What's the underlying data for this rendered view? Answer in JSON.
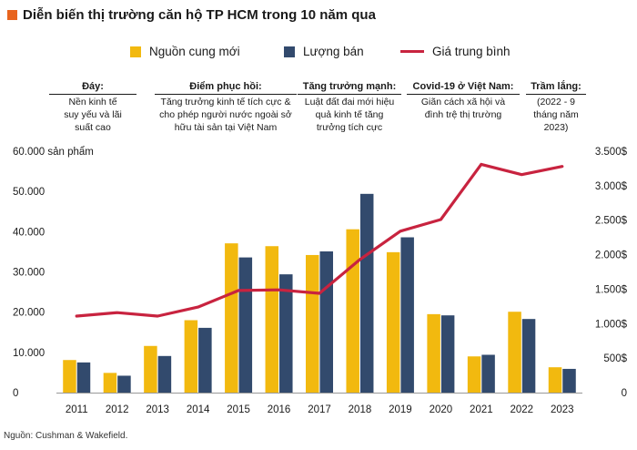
{
  "title": "Diễn biến thị trường căn hộ TP HCM trong 10 năm qua",
  "source": "Nguồn: Cushman & Wakefield.",
  "colors": {
    "accent": "#e8641e",
    "supply": "#f2b90f",
    "sold": "#324a6d",
    "price": "#c8233f",
    "axis": "#555555"
  },
  "annotations": [
    {
      "heading": "Đáy:",
      "text": "Nền kinh tế suy yếu và lãi suất cao"
    },
    {
      "heading": "Điểm phục hồi:",
      "text": "Tăng trưởng kinh tế tích cực & cho phép người nước ngoài sở hữu tài sản tại Việt Nam"
    },
    {
      "heading": "Tăng trưởng mạnh:",
      "text": "Luật đất đai mới hiệu quả kinh tế tăng trưởng tích cực"
    },
    {
      "heading": "Covid-19 ở Việt Nam:",
      "text": "Giãn cách xã hội và đình trệ thị trường"
    },
    {
      "heading": "Trầm lắng:",
      "text": "(2022 - 9 tháng năm 2023)"
    }
  ],
  "chart_data": {
    "type": "bar+line",
    "categories": [
      "2011",
      "2012",
      "2013",
      "2014",
      "2015",
      "2016",
      "2017",
      "2018",
      "2019",
      "2020",
      "2021",
      "2022",
      "2023"
    ],
    "series": [
      {
        "name": "Nguồn cung mới",
        "type": "bar",
        "axis": "left",
        "values": [
          8100,
          4900,
          11600,
          18000,
          37100,
          36400,
          34200,
          40600,
          34900,
          19500,
          9000,
          20100,
          6300
        ]
      },
      {
        "name": "Lượng bán",
        "type": "bar",
        "axis": "left",
        "values": [
          7500,
          4200,
          9100,
          16100,
          33600,
          29400,
          35100,
          49400,
          38600,
          19200,
          9400,
          18300,
          5900
        ]
      },
      {
        "name": "Giá trung bình",
        "type": "line",
        "axis": "right",
        "values": [
          1110,
          1160,
          1110,
          1240,
          1480,
          1490,
          1440,
          1930,
          2340,
          2510,
          3310,
          3160,
          3280
        ]
      }
    ],
    "y_left": {
      "label": "sản phẩm",
      "ylim": [
        0,
        60000
      ],
      "ticks": [
        0,
        10000,
        20000,
        30000,
        40000,
        50000,
        60000
      ],
      "tick_labels": [
        "0",
        "10.000",
        "20.000",
        "30.000",
        "40.000",
        "50.000",
        "60.000 sản phẩm"
      ]
    },
    "y_right": {
      "ylim": [
        0,
        3500
      ],
      "ticks": [
        0,
        500,
        1000,
        1500,
        2000,
        2500,
        3000,
        3500
      ],
      "tick_labels": [
        "0",
        "500$",
        "1.000$",
        "1.500$",
        "2.000$",
        "2.500$",
        "3.000$",
        "3.500$"
      ]
    },
    "grid": false,
    "legend": "top"
  }
}
